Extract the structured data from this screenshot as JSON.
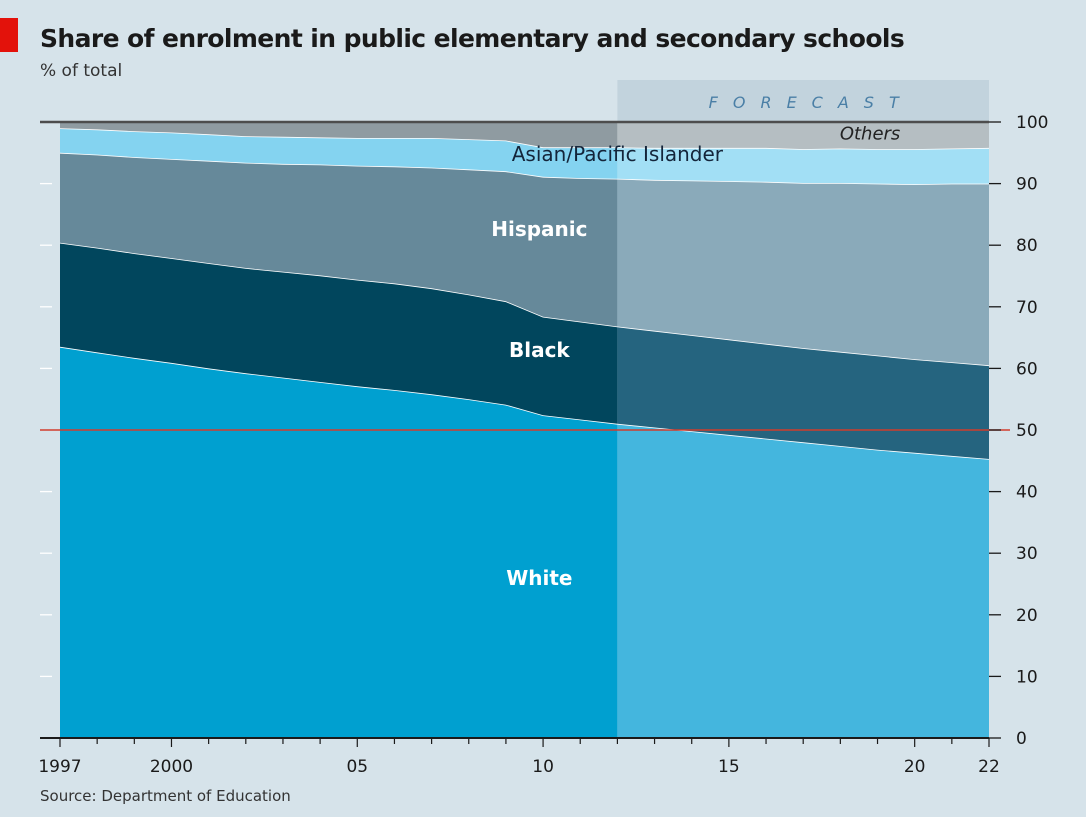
{
  "title": "Share of enrolment in public elementary and secondary schools",
  "subtitle": "% of total",
  "source": "Source: Department of Education",
  "forecast_label": "FORECAST",
  "colors": {
    "background": "#d6e3ea",
    "white": "#00a0d0",
    "white_forecast": "#44b6de",
    "black": "#01465d",
    "black_forecast": "#25647f",
    "hispanic": "#66899a",
    "hispanic_forecast": "#8aaaba",
    "asian": "#84d3f0",
    "asian_forecast": "#a2dff5",
    "others": "#8f9ba1",
    "others_forecast": "#b5bec2",
    "forecast_band": "#c2d3dd",
    "reference_line": "#d23c2c"
  },
  "chart_data": {
    "type": "area",
    "stacked": true,
    "title": "Share of enrolment in public elementary and secondary schools",
    "ylabel": "% of total",
    "xlim": [
      1997,
      2022
    ],
    "ylim": [
      0,
      100
    ],
    "x_ticks": [
      {
        "value": 1997,
        "label": "1997"
      },
      {
        "value": 2000,
        "label": "2000"
      },
      {
        "value": 2005,
        "label": "05"
      },
      {
        "value": 2010,
        "label": "10"
      },
      {
        "value": 2015,
        "label": "15"
      },
      {
        "value": 2020,
        "label": "20"
      },
      {
        "value": 2022,
        "label": "22"
      }
    ],
    "y_ticks": [
      0,
      10,
      20,
      30,
      40,
      50,
      60,
      70,
      80,
      90,
      100
    ],
    "forecast_start": 2012,
    "reference_line": 50,
    "x": [
      1997,
      1998,
      1999,
      2000,
      2001,
      2002,
      2003,
      2004,
      2005,
      2006,
      2007,
      2008,
      2009,
      2010,
      2011,
      2012,
      2013,
      2014,
      2015,
      2016,
      2017,
      2018,
      2019,
      2020,
      2021,
      2022
    ],
    "series": [
      {
        "name": "White",
        "label": "White",
        "label_at": [
          2009.9,
          26
        ],
        "values": [
          63.5,
          62.6,
          61.7,
          60.9,
          60.0,
          59.2,
          58.5,
          57.8,
          57.1,
          56.5,
          55.8,
          55.0,
          54.1,
          52.4,
          51.7,
          51.0,
          50.4,
          49.8,
          49.2,
          48.6,
          48.0,
          47.4,
          46.8,
          46.3,
          45.8,
          45.3
        ]
      },
      {
        "name": "Black",
        "label": "Black",
        "label_at": [
          2009.9,
          63
        ],
        "values": [
          16.9,
          17.0,
          17.0,
          17.0,
          17.1,
          17.1,
          17.2,
          17.3,
          17.3,
          17.3,
          17.2,
          17.0,
          16.8,
          16.0,
          15.9,
          15.8,
          15.7,
          15.6,
          15.5,
          15.4,
          15.3,
          15.3,
          15.3,
          15.2,
          15.2,
          15.2
        ]
      },
      {
        "name": "Hispanic",
        "label": "Hispanic",
        "label_at": [
          2009.9,
          82.6
        ],
        "values": [
          14.6,
          15.1,
          15.6,
          16.1,
          16.6,
          17.1,
          17.5,
          18.0,
          18.5,
          19.0,
          19.6,
          20.3,
          21.1,
          22.7,
          23.3,
          24.0,
          24.5,
          25.1,
          25.7,
          26.3,
          26.8,
          27.4,
          27.9,
          28.4,
          29.0,
          29.5
        ]
      },
      {
        "name": "Asian/Pacific Islander",
        "label": "Asian/Pacific Islander",
        "label_at": [
          2012,
          94.8
        ],
        "values": [
          4.0,
          4.1,
          4.2,
          4.3,
          4.3,
          4.3,
          4.4,
          4.4,
          4.5,
          4.6,
          4.8,
          4.9,
          5.0,
          4.8,
          5.0,
          5.1,
          5.2,
          5.3,
          5.4,
          5.5,
          5.5,
          5.6,
          5.6,
          5.7,
          5.7,
          5.8
        ]
      },
      {
        "name": "Others",
        "label": "Others",
        "label_at": [
          2018.8,
          98.3
        ],
        "values": [
          1.0,
          1.2,
          1.5,
          1.7,
          2.0,
          2.3,
          2.4,
          2.5,
          2.6,
          2.6,
          2.6,
          2.8,
          3.0,
          4.1,
          4.1,
          4.1,
          4.2,
          4.2,
          4.2,
          4.2,
          4.4,
          4.3,
          4.4,
          4.4,
          4.3,
          4.2
        ]
      }
    ]
  }
}
